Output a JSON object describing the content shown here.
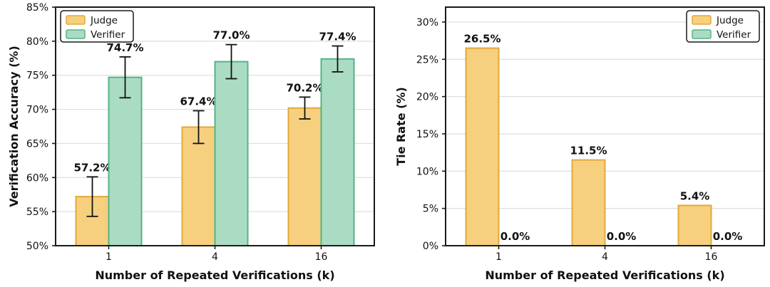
{
  "colors": {
    "background": "#ffffff",
    "grid": "#dedede",
    "spine": "#1a1a1a",
    "text": "#111111",
    "error_bar": "#111111",
    "judge_fill": "#F6D07E",
    "judge_edge": "#E4A83A",
    "verifier_fill": "#AADCC4",
    "verifier_edge": "#55B289"
  },
  "chart_data": [
    {
      "type": "bar",
      "title": "",
      "ylabel": "Verification Accuracy (%)",
      "xlabel": "Number of Repeated Verifications (k)",
      "categories": [
        "1",
        "4",
        "16"
      ],
      "ylim": [
        50,
        85
      ],
      "ytick_step": 5,
      "ytick_max": 85,
      "ytick_suffix": "%",
      "grid": true,
      "legend_position": "top-left",
      "legend_entries": [
        "Judge",
        "Verifier"
      ],
      "series": [
        {
          "name": "Judge",
          "values": [
            57.2,
            67.4,
            70.2
          ],
          "errors": [
            2.9,
            2.4,
            1.6
          ],
          "labels": [
            "57.2%",
            "67.4%",
            "70.2%"
          ],
          "fill": "#F6D07E",
          "edge": "#E4A83A"
        },
        {
          "name": "Verifier",
          "values": [
            74.7,
            77.0,
            77.4
          ],
          "errors": [
            3.0,
            2.5,
            1.9
          ],
          "labels": [
            "74.7%",
            "77.0%",
            "77.4%"
          ],
          "fill": "#AADCC4",
          "edge": "#55B289"
        }
      ]
    },
    {
      "type": "bar",
      "title": "",
      "ylabel": "Tie Rate (%)",
      "xlabel": "Number of Repeated Verifications (k)",
      "categories": [
        "1",
        "4",
        "16"
      ],
      "ylim": [
        0,
        32
      ],
      "ytick_step": 5,
      "ytick_max": 30,
      "ytick_suffix": "%",
      "grid": true,
      "legend_position": "top-right",
      "legend_entries": [
        "Judge",
        "Verifier"
      ],
      "series": [
        {
          "name": "Judge",
          "values": [
            26.5,
            11.5,
            5.4
          ],
          "errors": null,
          "labels": [
            "26.5%",
            "11.5%",
            "5.4%"
          ],
          "fill": "#F6D07E",
          "edge": "#E4A83A"
        },
        {
          "name": "Verifier",
          "values": [
            0,
            0,
            0
          ],
          "errors": null,
          "labels": [
            "0.0%",
            "0.0%",
            "0.0%"
          ],
          "fill": "#AADCC4",
          "edge": "#55B289"
        }
      ]
    }
  ]
}
